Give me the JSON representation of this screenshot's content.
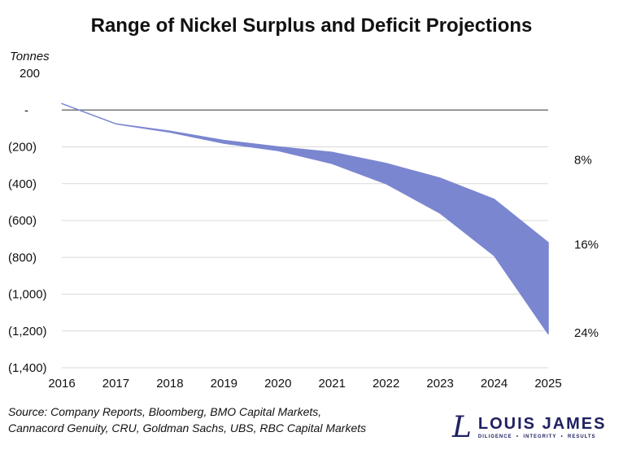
{
  "chart_data": {
    "type": "area",
    "title": "Range of Nickel Surplus and Deficit Projections",
    "ylabel": "Tonnes",
    "xlabel": "",
    "x": [
      2016,
      2017,
      2018,
      2019,
      2020,
      2021,
      2022,
      2023,
      2024,
      2025
    ],
    "x_tick_labels": [
      "2016",
      "2017",
      "2018",
      "2019",
      "2020",
      "2021",
      "2022",
      "2023",
      "2024",
      "2025"
    ],
    "ylim": [
      -1400,
      200
    ],
    "y_ticks": [
      200,
      0,
      -200,
      -400,
      -600,
      -800,
      -1000,
      -1200,
      -1400
    ],
    "y_tick_labels": [
      "200",
      "-",
      "(200)",
      "(400)",
      "(600)",
      "(800)",
      "(1,000)",
      "(1,200)",
      "(1,400)"
    ],
    "series": [
      {
        "role": "upper",
        "values": [
          35,
          -75,
          -115,
          -165,
          -200,
          -230,
          -290,
          -370,
          -485,
          -720
        ]
      },
      {
        "role": "lower",
        "values": [
          35,
          -75,
          -120,
          -180,
          -220,
          -290,
          -400,
          -560,
          -790,
          -1215
        ]
      }
    ],
    "annotations": [
      {
        "text": "8%",
        "y": -270
      },
      {
        "text": "16%",
        "y": -730
      },
      {
        "text": "24%",
        "y": -1210
      }
    ],
    "grid": true,
    "fill_color": "#7b86d0",
    "line_color": "#7b86d0"
  },
  "source": [
    "Source: Company Reports, Bloomberg, BMO Capital Markets,",
    "Cannacord Genuity, CRU, Goldman Sachs, UBS, RBC Capital Markets"
  ],
  "logo": {
    "mark": "L",
    "name": "LOUIS JAMES",
    "tagline": "DILIGENCE  •  INTEGRITY  •  RESULTS"
  }
}
